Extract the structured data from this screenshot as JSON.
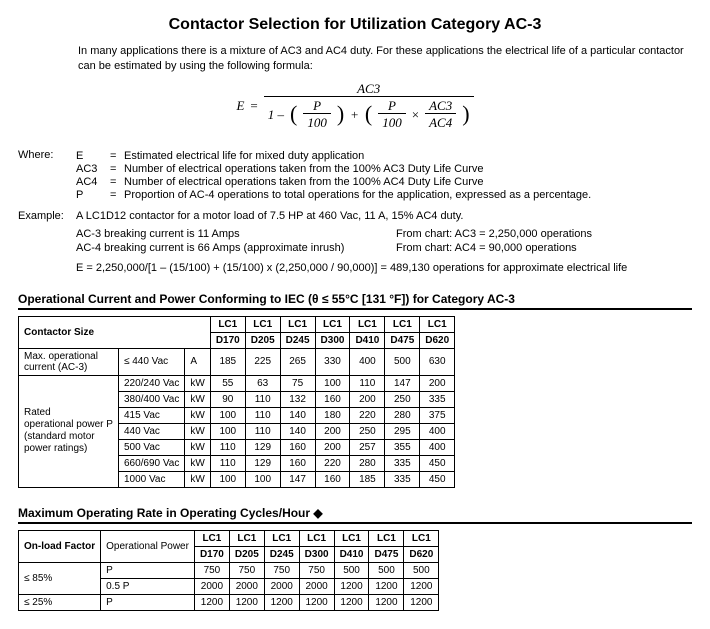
{
  "title": "Contactor Selection for Utilization Category AC-3",
  "intro": "In many applications there is a mixture of AC3 and AC4 duty. For these applications the electrical life of a particular contactor can be estimated by using the following formula:",
  "formula": {
    "lhs": "E",
    "eq": "=",
    "num_top": "AC3",
    "den_lead": "1 –",
    "p": "P",
    "hundred": "100",
    "plus": "+",
    "times": "×",
    "ac3": "AC3",
    "ac4": "AC4"
  },
  "where_label": "Where:",
  "defs": [
    {
      "sym": "E",
      "txt": "Estimated electrical life for mixed duty application"
    },
    {
      "sym": "AC3",
      "txt": "Number of electrical operations taken from the 100% AC3 Duty Life Curve"
    },
    {
      "sym": "AC4",
      "txt": "Number of electrical operations taken from the 100% AC4 Duty Life Curve"
    },
    {
      "sym": "P",
      "txt": "Proportion of AC-4 operations to total operations for the application, expressed as a percentage."
    }
  ],
  "example_label": "Example:",
  "example_intro": "A LC1D12 contactor for a motor load of 7.5 HP at 460 Vac, 11 A, 15% AC4 duty.",
  "ex_left1": "AC-3 breaking current is 11 Amps",
  "ex_right1": "From chart:  AC3 = 2,250,000 operations",
  "ex_left2": "AC-4 breaking current is 66 Amps (approximate inrush)",
  "ex_right2": "From chart:  AC4 = 90,000 operations",
  "ex_result": "E = 2,250,000/[1 – (15/100) + (15/100) x (2,250,000 / 90,000)] = 489,130 operations for approximate electrical life",
  "t1_title": "Operational Current and Power Conforming to IEC (θ ≤ 55°C [131 °F]) for Category AC-3",
  "t1": {
    "size_label": "Contactor Size",
    "lc1": "LC1",
    "models": [
      "D170",
      "D205",
      "D245",
      "D300",
      "D410",
      "D475",
      "D620"
    ],
    "row_maxop": {
      "l1": "Max. operational",
      "l2": "current (AC-3)",
      "cond": "≤ 440 Vac",
      "unit": "A",
      "vals": [
        "185",
        "225",
        "265",
        "330",
        "400",
        "500",
        "630"
      ]
    },
    "grp_label_l1": "Rated",
    "grp_label_l2": "operational power P",
    "grp_label_l3": "(standard motor",
    "grp_label_l4": "power ratings)",
    "rows": [
      {
        "cond": "220/240 Vac",
        "unit": "kW",
        "vals": [
          "55",
          "63",
          "75",
          "100",
          "110",
          "147",
          "200"
        ]
      },
      {
        "cond": "380/400 Vac",
        "unit": "kW",
        "vals": [
          "90",
          "110",
          "132",
          "160",
          "200",
          "250",
          "335"
        ]
      },
      {
        "cond": "415 Vac",
        "unit": "kW",
        "vals": [
          "100",
          "110",
          "140",
          "180",
          "220",
          "280",
          "375"
        ]
      },
      {
        "cond": "440 Vac",
        "unit": "kW",
        "vals": [
          "100",
          "110",
          "140",
          "200",
          "250",
          "295",
          "400"
        ]
      },
      {
        "cond": "500 Vac",
        "unit": "kW",
        "vals": [
          "110",
          "129",
          "160",
          "200",
          "257",
          "355",
          "400"
        ]
      },
      {
        "cond": "660/690 Vac",
        "unit": "kW",
        "vals": [
          "110",
          "129",
          "160",
          "220",
          "280",
          "335",
          "450"
        ]
      },
      {
        "cond": "1000 Vac",
        "unit": "kW",
        "vals": [
          "100",
          "100",
          "147",
          "160",
          "185",
          "335",
          "450"
        ]
      }
    ]
  },
  "t2_title": "Maximum Operating Rate in Operating Cycles/Hour ◆",
  "t2": {
    "factor_label": "On-load Factor",
    "power_label": "Operational Power",
    "lc1": "LC1",
    "models": [
      "D170",
      "D205",
      "D245",
      "D300",
      "D410",
      "D475",
      "D620"
    ],
    "rows": [
      {
        "factor": "≤ 85%",
        "power": "P",
        "vals": [
          "750",
          "750",
          "750",
          "750",
          "500",
          "500",
          "500"
        ]
      },
      {
        "factor": "",
        "power": "0.5 P",
        "vals": [
          "2000",
          "2000",
          "2000",
          "2000",
          "1200",
          "1200",
          "1200"
        ]
      },
      {
        "factor": "≤ 25%",
        "power": "P",
        "vals": [
          "1200",
          "1200",
          "1200",
          "1200",
          "1200",
          "1200",
          "1200"
        ]
      }
    ]
  }
}
